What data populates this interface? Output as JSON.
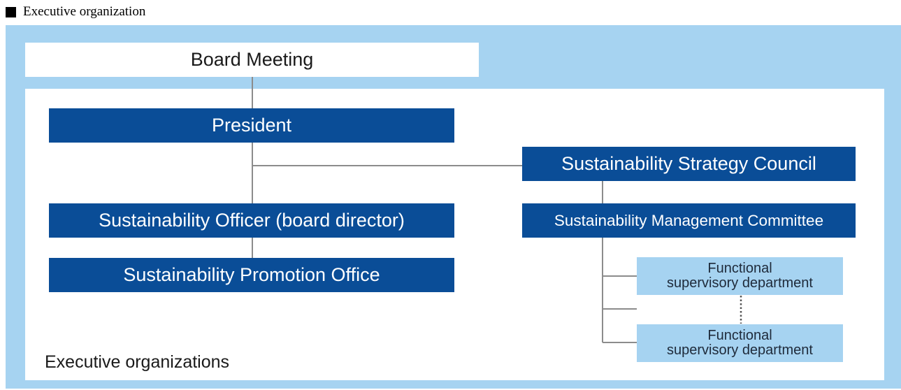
{
  "heading": "Executive organization",
  "nodes": {
    "board": "Board Meeting",
    "president": "President",
    "officer": "Sustainability Officer (board director)",
    "promotion_office": "Sustainability Promotion Office",
    "council": "Sustainability Strategy Council",
    "management_committee": "Sustainability Management Committee",
    "functional_dept_1": {
      "line1": "Functional",
      "line2": "supervisory department"
    },
    "functional_dept_2": {
      "line1": "Functional",
      "line2": "supervisory department"
    }
  },
  "footer_label": "Executive organizations",
  "colors": {
    "outer_bg": "#a6d3f1",
    "dark_box": "#0a4d97",
    "light_box": "#a6d3f1",
    "connector": "#8c8c8c"
  }
}
